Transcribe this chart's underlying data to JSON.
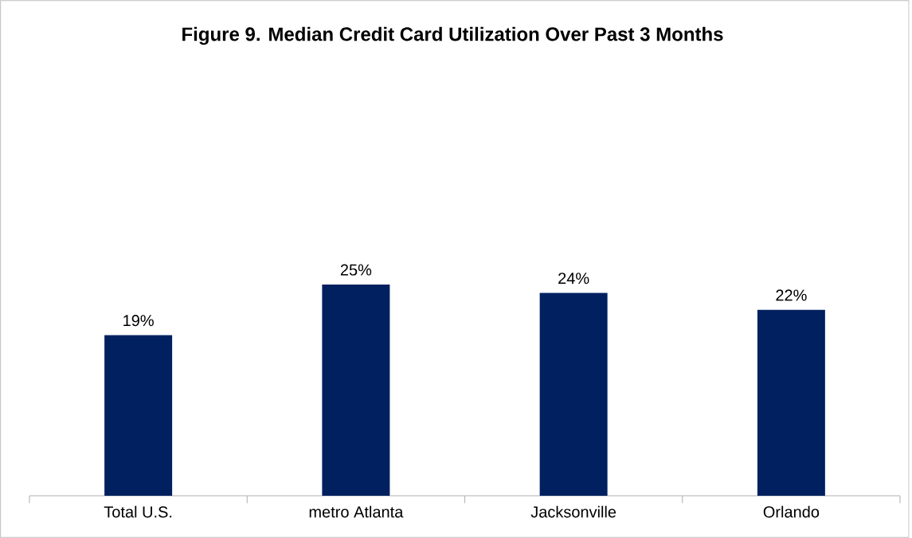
{
  "chart_data": {
    "type": "bar",
    "title": "Figure 9. Median Credit Card Utilization Over Past 3 Months",
    "categories": [
      "Total U.S.",
      "metro Atlanta",
      "Jacksonville",
      "Orlando"
    ],
    "values": [
      19,
      25,
      24,
      22
    ],
    "value_labels": [
      "19%",
      "25%",
      "24%",
      "22%"
    ],
    "color": "#002060"
  }
}
